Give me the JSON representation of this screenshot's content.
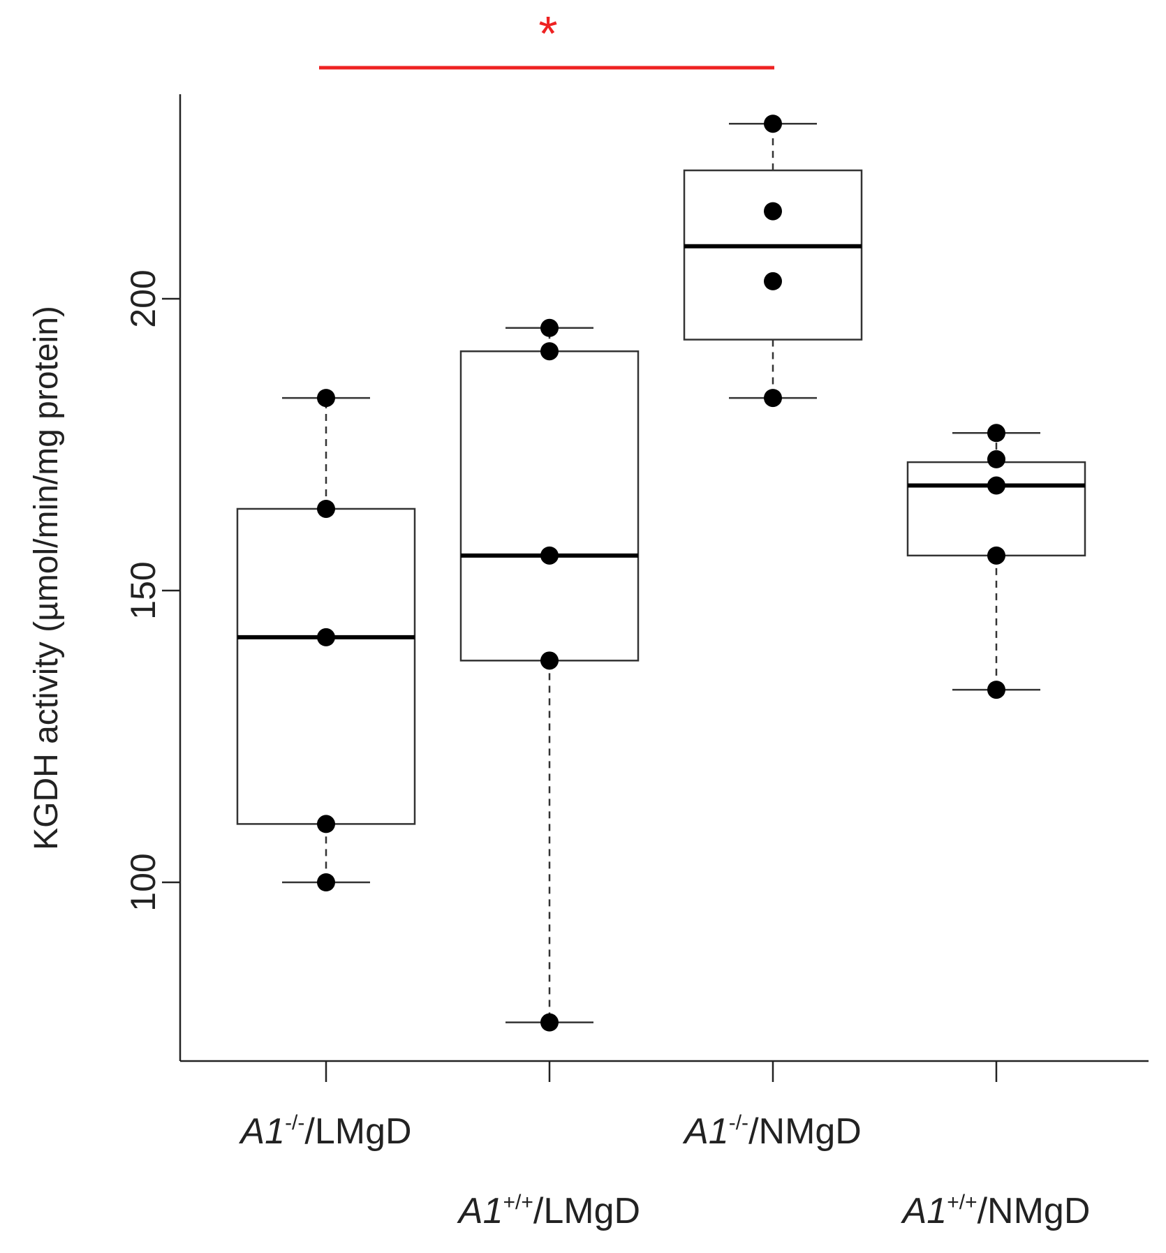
{
  "chart_data": {
    "type": "box",
    "title": "",
    "xlabel": "",
    "ylabel": "KGDH activity (µmol/min/mg protein)",
    "ylim": [
      70,
      235
    ],
    "yticks": [
      100,
      150,
      200
    ],
    "categories": [
      {
        "label_italic": "A1",
        "label_sup": "-/-",
        "label_rest": "/LMgD"
      },
      {
        "label_italic": "A1",
        "label_sup": "+/+",
        "label_rest": "/LMgD"
      },
      {
        "label_italic": "A1",
        "label_sup": "-/-",
        "label_rest": "/NMgD"
      },
      {
        "label_italic": "A1",
        "label_sup": "+/+",
        "label_rest": "/NMgD"
      }
    ],
    "boxes": [
      {
        "whisker_low": 100,
        "q1": 110,
        "median": 142,
        "q3": 164,
        "whisker_high": 183
      },
      {
        "whisker_low": 76,
        "q1": 138,
        "median": 156,
        "q3": 191,
        "whisker_high": 195
      },
      {
        "whisker_low": 183,
        "q1": 193,
        "median": 209,
        "q3": 222,
        "whisker_high": 230
      },
      {
        "whisker_low": 133,
        "q1": 156,
        "median": 168,
        "q3": 172,
        "whisker_high": 177
      }
    ],
    "points": [
      [
        183,
        164,
        142,
        110,
        100
      ],
      [
        195,
        191,
        156,
        138,
        76
      ],
      [
        230,
        215,
        203,
        183
      ],
      [
        177,
        172.5,
        168,
        156,
        133
      ]
    ],
    "significance": [
      {
        "from": 0,
        "to": 2,
        "label": "*",
        "color": "#ee2222"
      }
    ]
  }
}
